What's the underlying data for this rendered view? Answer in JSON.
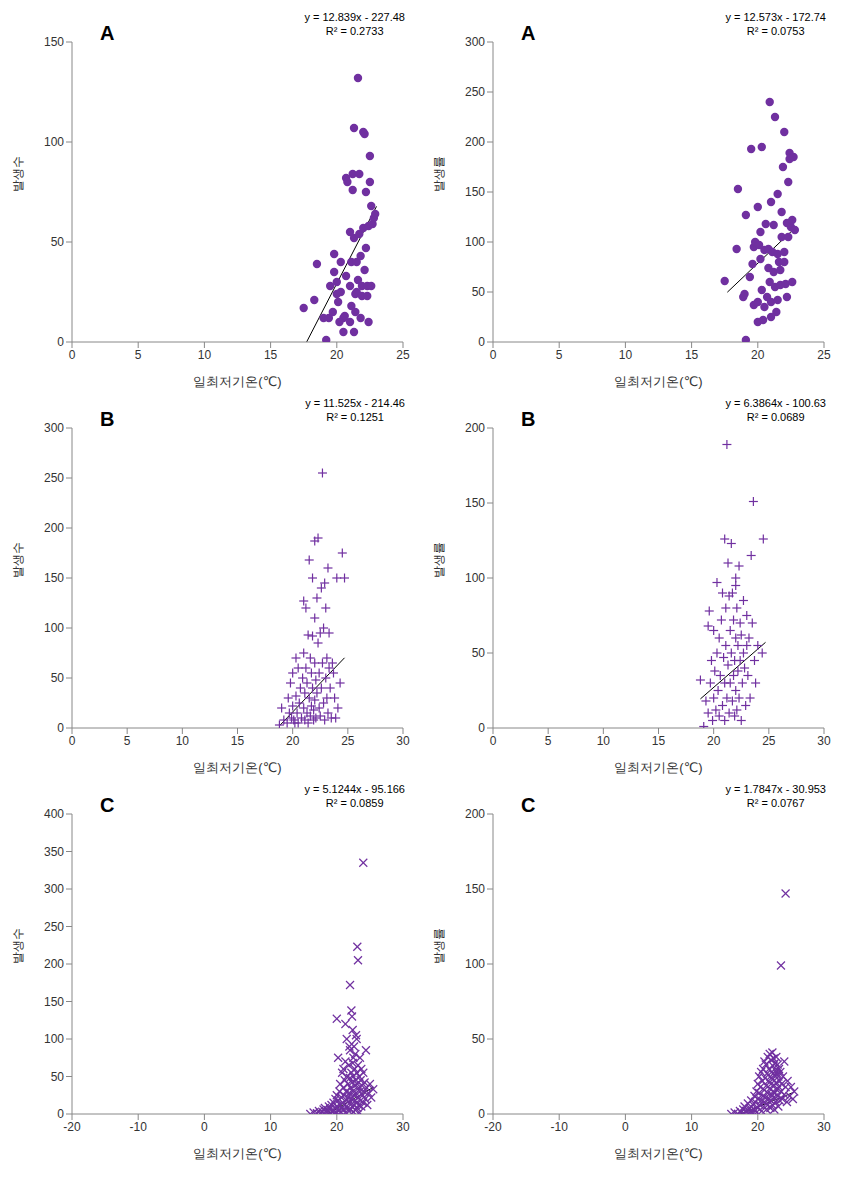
{
  "chart_data": [
    {
      "type": "scatter",
      "title": "A",
      "xlabel": "일최저기온(℃)",
      "ylabel": "발생수",
      "annotations": [
        "y = 12.839x - 227.48",
        "R² = 0.2733"
      ],
      "color": "#7030a0",
      "marker": "circle",
      "xlim": [
        0,
        25
      ],
      "xticks": [
        0,
        5,
        10,
        15,
        20,
        25
      ],
      "ylim": [
        0,
        150
      ],
      "yticks": [
        0,
        50,
        100,
        150
      ],
      "trendline": {
        "x": [
          17.72,
          23
        ],
        "y": [
          0,
          67.8
        ]
      },
      "x": [
        17.5,
        18.3,
        18.5,
        19,
        19.2,
        19.4,
        19.5,
        19.7,
        19.8,
        19.8,
        20,
        20,
        20.1,
        20.3,
        20.3,
        20.5,
        20.5,
        20.6,
        20.7,
        20.7,
        20.8,
        21,
        21,
        21,
        21.1,
        21.1,
        21.2,
        21.2,
        21.3,
        21.3,
        21.4,
        21.4,
        21.5,
        21.5,
        21.6,
        21.6,
        21.7,
        21.7,
        21.8,
        21.8,
        21.9,
        21.9,
        22,
        22,
        22.1,
        22.1,
        22.2,
        22.2,
        22.3,
        22.3,
        22.4,
        22.4,
        22.5,
        22.5,
        22.6,
        22.7,
        22.8,
        22.9,
        22.6,
        21.3,
        20.2
      ],
      "values": [
        17,
        21,
        39,
        12,
        1,
        12,
        28,
        15,
        35,
        44,
        24,
        30,
        20,
        25,
        40,
        5,
        12,
        13,
        33,
        82,
        80,
        10,
        28,
        55,
        18,
        40,
        76,
        84,
        107,
        52,
        24,
        15,
        40,
        25,
        132,
        31,
        54,
        84,
        43,
        12,
        23,
        28,
        105,
        57,
        36,
        104,
        47,
        75,
        28,
        23,
        58,
        10,
        93,
        80,
        68,
        59,
        62,
        64,
        28,
        5,
        10
      ]
    },
    {
      "type": "scatter",
      "title": "A",
      "xlabel": "일최저기온(℃)",
      "ylabel": "발생률",
      "annotations": [
        "y = 12.573x - 172.74",
        "R² = 0.0753"
      ],
      "color": "#7030a0",
      "marker": "circle",
      "xlim": [
        0,
        25
      ],
      "xticks": [
        0,
        5,
        10,
        15,
        20,
        25
      ],
      "ylim": [
        0,
        300
      ],
      "yticks": [
        0,
        50,
        100,
        150,
        200,
        250,
        300
      ],
      "trendline": {
        "x": [
          17.7,
          22.9
        ],
        "y": [
          49.8,
          115.2
        ]
      },
      "x": [
        17.5,
        18.4,
        18.5,
        18.9,
        19,
        19.1,
        19.1,
        19.5,
        19.6,
        19.7,
        19.7,
        19.8,
        20,
        20,
        20,
        20.2,
        20.2,
        20.3,
        20.3,
        20.4,
        20.5,
        20.5,
        20.6,
        20.7,
        20.8,
        20.8,
        20.9,
        20.9,
        21,
        21,
        21.1,
        21.2,
        21.2,
        21.3,
        21.3,
        21.4,
        21.5,
        21.5,
        21.6,
        21.7,
        21.8,
        21.8,
        21.9,
        22,
        22,
        22.1,
        22.2,
        22.2,
        22.3,
        22.3,
        22.4,
        22.4,
        22.5,
        22.6,
        22.6,
        22.7,
        22.8,
        21,
        21.5,
        20.1,
        19.4,
        22,
        21.7
      ],
      "values": [
        61,
        93,
        153,
        45,
        48,
        2,
        127,
        193,
        78,
        95,
        37,
        100,
        40,
        135,
        20,
        83,
        110,
        52,
        195,
        22,
        92,
        35,
        118,
        45,
        93,
        74,
        240,
        60,
        140,
        40,
        90,
        70,
        117,
        225,
        55,
        30,
        88,
        148,
        80,
        57,
        105,
        130,
        175,
        90,
        210,
        58,
        119,
        45,
        160,
        105,
        189,
        183,
        115,
        60,
        122,
        185,
        112,
        25,
        42,
        97,
        65,
        80,
        72
      ]
    },
    {
      "type": "scatter",
      "title": "B",
      "xlabel": "일최저기온(℃)",
      "ylabel": "발생수",
      "annotations": [
        "y = 11.525x - 214.46",
        "R² = 0.1251"
      ],
      "color": "#7030a0",
      "marker": "plus",
      "xlim": [
        0,
        30
      ],
      "xticks": [
        0,
        5,
        10,
        15,
        20,
        25,
        30
      ],
      "ylim": [
        0,
        300
      ],
      "yticks": [
        0,
        50,
        100,
        150,
        200,
        250,
        300
      ],
      "trendline": {
        "x": [
          18.8,
          24.7
        ],
        "y": [
          2.2,
          70.2
        ]
      },
      "x": [
        18.8,
        19,
        19.2,
        19.5,
        19.6,
        19.7,
        19.8,
        19.9,
        20,
        20,
        20.1,
        20.2,
        20.3,
        20.4,
        20.5,
        20.5,
        20.6,
        20.7,
        20.8,
        20.9,
        21,
        21,
        21,
        21.1,
        21.1,
        21.2,
        21.2,
        21.3,
        21.3,
        21.4,
        21.4,
        21.5,
        21.5,
        21.6,
        21.6,
        21.7,
        21.7,
        21.8,
        21.8,
        21.9,
        21.9,
        22,
        22,
        22,
        22,
        22.1,
        22.1,
        22.2,
        22.2,
        22.3,
        22.3,
        22.4,
        22.4,
        22.5,
        22.5,
        22.6,
        22.6,
        22.7,
        22.7,
        22.8,
        22.8,
        22.9,
        22.9,
        23,
        23,
        23.1,
        23.1,
        23.2,
        23.2,
        23.3,
        23.3,
        23.4,
        23.5,
        23.6,
        23.7,
        23.8,
        24,
        24.1,
        24.3,
        24.5,
        24.7,
        23.9,
        20.3,
        21.8
      ],
      "values": [
        3,
        20,
        8,
        5,
        30,
        15,
        45,
        10,
        55,
        22,
        8,
        5,
        32,
        15,
        60,
        5,
        25,
        40,
        10,
        50,
        127,
        75,
        20,
        35,
        8,
        120,
        60,
        45,
        15,
        93,
        5,
        168,
        30,
        70,
        12,
        55,
        22,
        92,
        40,
        18,
        8,
        187,
        110,
        65,
        28,
        48,
        10,
        130,
        35,
        190,
        85,
        20,
        55,
        95,
        12,
        140,
        40,
        255,
        65,
        100,
        25,
        145,
        8,
        120,
        50,
        30,
        70,
        160,
        15,
        60,
        95,
        40,
        10,
        65,
        55,
        30,
        150,
        20,
        45,
        175,
        150,
        10,
        70,
        150
      ]
    },
    {
      "type": "scatter",
      "title": "B",
      "xlabel": "일최저기온(℃)",
      "ylabel": "발생률",
      "annotations": [
        "y = 6.3864x - 100.63",
        "R² = 0.0689"
      ],
      "color": "#7030a0",
      "marker": "plus",
      "xlim": [
        0,
        30
      ],
      "xticks": [
        0,
        5,
        10,
        15,
        20,
        25,
        30
      ],
      "ylim": [
        0,
        200
      ],
      "yticks": [
        0,
        50,
        100,
        150,
        200
      ],
      "trendline": {
        "x": [
          18.8,
          24.7
        ],
        "y": [
          19.4,
          57.1
        ]
      },
      "x": [
        18.8,
        19.1,
        19.3,
        19.5,
        19.5,
        19.6,
        19.7,
        19.8,
        19.9,
        20,
        20,
        20.1,
        20.2,
        20.3,
        20.3,
        20.4,
        20.5,
        20.5,
        20.6,
        20.7,
        20.8,
        20.9,
        21,
        21,
        21,
        21.1,
        21.1,
        21.2,
        21.2,
        21.3,
        21.3,
        21.4,
        21.4,
        21.5,
        21.5,
        21.6,
        21.6,
        21.7,
        21.7,
        21.8,
        21.8,
        21.9,
        21.9,
        22,
        22,
        22,
        22.1,
        22.1,
        22.2,
        22.2,
        22.3,
        22.3,
        22.4,
        22.4,
        22.5,
        22.5,
        22.6,
        22.7,
        22.7,
        22.8,
        22.9,
        23,
        23,
        23.1,
        23.2,
        23.3,
        23.4,
        23.5,
        23.6,
        23.7,
        23.8,
        24,
        24.5,
        24.4,
        22,
        20.8
      ],
      "values": [
        32,
        1,
        18,
        68,
        10,
        78,
        30,
        45,
        5,
        65,
        20,
        38,
        12,
        97,
        50,
        25,
        60,
        8,
        35,
        72,
        15,
        47,
        126,
        30,
        5,
        80,
        55,
        189,
        20,
        110,
        42,
        88,
        10,
        65,
        30,
        123,
        50,
        90,
        18,
        72,
        35,
        45,
        8,
        95,
        60,
        25,
        80,
        12,
        55,
        38,
        108,
        20,
        70,
        45,
        62,
        5,
        30,
        85,
        50,
        40,
        15,
        75,
        55,
        35,
        60,
        20,
        115,
        70,
        151,
        45,
        30,
        55,
        126,
        50,
        100,
        90
      ]
    },
    {
      "type": "scatter",
      "title": "C",
      "xlabel": "일최저기온(℃)",
      "ylabel": "발생수",
      "annotations": [
        "y = 5.1244x - 95.166",
        "R² = 0.0859"
      ],
      "color": "#7030a0",
      "marker": "x",
      "xlim": [
        -20,
        30
      ],
      "xticks": [
        -20,
        -10,
        0,
        10,
        20,
        30
      ],
      "ylim": [
        0,
        400
      ],
      "yticks": [
        0,
        50,
        100,
        150,
        200,
        250,
        300,
        350,
        400
      ],
      "trendline": {
        "x": [
          18.6,
          25.5
        ],
        "y": [
          0.1,
          35.5
        ]
      },
      "x": [
        16,
        16.5,
        17,
        17.3,
        17.5,
        17.8,
        18,
        18,
        18.2,
        18.5,
        18.7,
        18.8,
        19,
        19,
        19.2,
        19.3,
        19.5,
        19.5,
        19.6,
        19.8,
        19.8,
        20,
        20,
        20,
        20,
        20.2,
        20.2,
        20.3,
        20.4,
        20.5,
        20.5,
        20.6,
        20.7,
        20.8,
        20.8,
        20.9,
        21,
        21,
        21,
        21.1,
        21.2,
        21.2,
        21.3,
        21.3,
        21.4,
        21.5,
        21.5,
        21.5,
        21.6,
        21.7,
        21.7,
        21.8,
        21.8,
        21.9,
        22,
        22,
        22,
        22,
        22.1,
        22.1,
        22.2,
        22.2,
        22.2,
        22.3,
        22.3,
        22.3,
        22.4,
        22.4,
        22.5,
        22.5,
        22.5,
        22.6,
        22.6,
        22.6,
        22.7,
        22.7,
        22.8,
        22.8,
        22.8,
        22.9,
        22.9,
        23,
        23,
        23,
        23.1,
        23.1,
        23.1,
        23.2,
        23.2,
        23.2,
        23.3,
        23.3,
        23.4,
        23.4,
        23.5,
        23.5,
        23.6,
        23.6,
        23.7,
        23.7,
        23.8,
        23.9,
        24,
        24,
        24,
        24.1,
        24.2,
        24.3,
        24.4,
        24.5,
        24.6,
        24.8,
        25,
        25.2,
        25.5,
        21.9,
        22.4,
        21.3,
        22.9
      ],
      "values": [
        0,
        2,
        1,
        4,
        0,
        3,
        6,
        1,
        8,
        2,
        5,
        10,
        0,
        7,
        12,
        3,
        15,
        5,
        1,
        20,
        8,
        127,
        25,
        10,
        2,
        75,
        18,
        5,
        30,
        12,
        40,
        3,
        22,
        55,
        8,
        15,
        60,
        35,
        5,
        25,
        45,
        12,
        70,
        2,
        30,
        100,
        18,
        50,
        8,
        40,
        22,
        65,
        4,
        28,
        172,
        85,
        48,
        15,
        35,
        6,
        138,
        55,
        20,
        130,
        42,
        10,
        112,
        30,
        75,
        50,
        3,
        90,
        25,
        12,
        60,
        38,
        80,
        18,
        5,
        45,
        28,
        100,
        55,
        15,
        223,
        40,
        8,
        205,
        65,
        22,
        35,
        12,
        50,
        2,
        75,
        30,
        45,
        18,
        60,
        10,
        38,
        25,
        335,
        55,
        15,
        30,
        42,
        20,
        85,
        35,
        12,
        28,
        40,
        22,
        33,
        90,
        68,
        120,
        105
      ]
    },
    {
      "type": "scatter",
      "title": "C",
      "xlabel": "일최저기온(℃)",
      "ylabel": "발생률",
      "annotations": [
        "y = 1.7847x - 30.953",
        "R² = 0.0767"
      ],
      "color": "#7030a0",
      "marker": "x",
      "xlim": [
        -20,
        30
      ],
      "xticks": [
        -20,
        -10,
        0,
        10,
        20,
        30
      ],
      "ylim": [
        0,
        200
      ],
      "yticks": [
        0,
        50,
        100,
        150,
        200
      ],
      "trendline": {
        "x": [
          17.4,
          25.5
        ],
        "y": [
          0.1,
          14.6
        ]
      },
      "x": [
        16,
        16.5,
        17,
        17.3,
        17.5,
        17.8,
        18,
        18,
        18.2,
        18.5,
        18.7,
        18.8,
        19,
        19,
        19.2,
        19.3,
        19.5,
        19.5,
        19.6,
        19.8,
        19.8,
        20,
        20,
        20,
        20.2,
        20.2,
        20.3,
        20.4,
        20.5,
        20.5,
        20.6,
        20.7,
        20.8,
        20.8,
        20.9,
        21,
        21,
        21,
        21.1,
        21.2,
        21.2,
        21.3,
        21.3,
        21.4,
        21.5,
        21.5,
        21.5,
        21.6,
        21.7,
        21.7,
        21.8,
        21.8,
        21.9,
        21.9,
        22,
        22,
        22,
        22.1,
        22.1,
        22.2,
        22.2,
        22.2,
        22.3,
        22.3,
        22.4,
        22.4,
        22.5,
        22.5,
        22.5,
        22.6,
        22.6,
        22.7,
        22.7,
        22.8,
        22.8,
        22.9,
        22.9,
        23,
        23,
        23.1,
        23.1,
        23.2,
        23.2,
        23.3,
        23.3,
        23.4,
        23.5,
        23.5,
        23.6,
        23.7,
        23.8,
        24,
        24,
        24.2,
        24.2,
        24.4,
        24.5,
        24.8,
        25,
        25.3,
        25.5
      ],
      "values": [
        0,
        1,
        0,
        2,
        1,
        3,
        0,
        5,
        2,
        7,
        1,
        4,
        9,
        2,
        0,
        6,
        12,
        3,
        8,
        15,
        1,
        20,
        10,
        4,
        25,
        14,
        6,
        18,
        28,
        9,
        2,
        22,
        12,
        30,
        5,
        35,
        16,
        8,
        24,
        11,
        33,
        19,
        3,
        27,
        38,
        14,
        6,
        22,
        30,
        10,
        40,
        17,
        25,
        4,
        36,
        20,
        9,
        28,
        13,
        41,
        23,
        6,
        32,
        15,
        37,
        11,
        26,
        19,
        3,
        34,
        14,
        29,
        8,
        38,
        21,
        16,
        27,
        33,
        12,
        25,
        5,
        30,
        18,
        22,
        9,
        28,
        99,
        15,
        20,
        10,
        25,
        35,
        13,
        147,
        18,
        8,
        22,
        12,
        18,
        10,
        15
      ]
    }
  ]
}
